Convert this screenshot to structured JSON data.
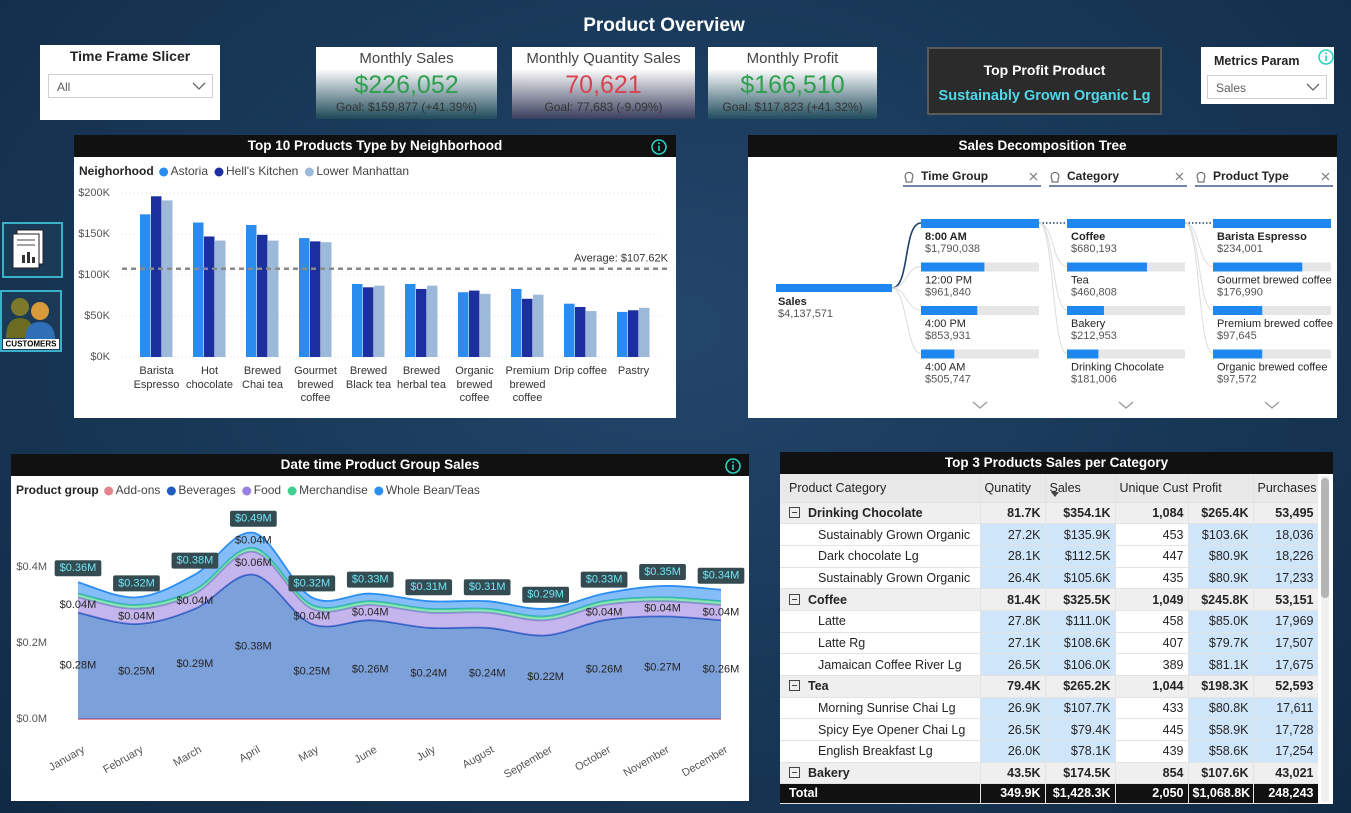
{
  "header": {
    "title": "Product Overview"
  },
  "slicer": {
    "title": "Time Frame Slicer",
    "value": "All"
  },
  "cards": [
    {
      "title": "Monthly Sales",
      "value": "$226,052",
      "goal": "Goal: $159,877 (+41.39%)",
      "color": "#2e9e4f"
    },
    {
      "title": "Monthly Quantity Sales",
      "value": "70,621",
      "goal": "Goal: 77,683 (-9.09%)",
      "color": "#d9434f"
    },
    {
      "title": "Monthly Profit",
      "value": "$166,510",
      "goal": "Goal: $117,823 (+41.32%)",
      "color": "#2e9e4f"
    }
  ],
  "top_profit": {
    "title": "Top Profit Product",
    "value": "Sustainably Grown Organic Lg"
  },
  "metrics_param": {
    "title": "Metrics Param",
    "value": "Sales"
  },
  "nav": {
    "customers": "CUSTOMERS"
  },
  "chart_data": [
    {
      "type": "bar",
      "title": "Top 10 Products Type by Neighborhood",
      "legend_title": "Neighorhood",
      "categories": [
        "Barista Espresso",
        "Hot chocolate",
        "Brewed Chai tea",
        "Gourmet brewed coffee",
        "Brewed Black tea",
        "Brewed herbal tea",
        "Organic brewed coffee",
        "Premium brewed coffee",
        "Drip coffee",
        "Pastry"
      ],
      "series": [
        {
          "name": "Astoria",
          "color": "#2b8cf0",
          "values": [
            174000,
            164000,
            161000,
            145000,
            89000,
            89000,
            79000,
            83000,
            65000,
            55000
          ]
        },
        {
          "name": "Hell's Kitchen",
          "color": "#1c2f9e",
          "values": [
            196000,
            147000,
            149000,
            141000,
            85000,
            83000,
            81000,
            71000,
            61000,
            57000
          ]
        },
        {
          "name": "Lower Manhattan",
          "color": "#9db9da",
          "values": [
            191000,
            142000,
            142000,
            140000,
            87000,
            87000,
            77000,
            76000,
            56000,
            60000
          ]
        }
      ],
      "ylim": [
        0,
        200000
      ],
      "yticks": [
        {
          "value": 0,
          "label": "$0K"
        },
        {
          "value": 50000,
          "label": "$50K"
        },
        {
          "value": 100000,
          "label": "$100K"
        },
        {
          "value": 150000,
          "label": "$150K"
        },
        {
          "value": 200000,
          "label": "$200K"
        }
      ],
      "grid": true,
      "reference_line": {
        "value": 107620,
        "label": "Average: $107.62K"
      }
    },
    {
      "type": "stacked_area",
      "title": "Date time Product Group Sales",
      "legend_title": "Product group",
      "categories": [
        "January",
        "February",
        "March",
        "April",
        "May",
        "June",
        "July",
        "August",
        "September",
        "October",
        "November",
        "December"
      ],
      "series": [
        {
          "name": "Add-ons",
          "color": "#e8828f",
          "values": [
            0,
            0,
            0,
            0,
            0,
            0,
            0,
            0,
            0,
            0,
            0,
            0
          ]
        },
        {
          "name": "Beverages",
          "color": "#1e5bbf",
          "values": [
            0.28,
            0.25,
            0.29,
            0.38,
            0.25,
            0.26,
            0.24,
            0.24,
            0.22,
            0.26,
            0.27,
            0.26
          ],
          "value_labels": [
            "$0.28M",
            "$0.25M",
            "$0.29M",
            "$0.38M",
            "$0.25M",
            "$0.26M",
            "$0.24M",
            "$0.24M",
            "$0.22M",
            "$0.26M",
            "$0.27M",
            "$0.26M"
          ]
        },
        {
          "name": "Food",
          "color": "#9b7fe0",
          "values": [
            0.04,
            0.04,
            0.04,
            0.06,
            0.04,
            0.04,
            0.04,
            0.04,
            0.04,
            0.04,
            0.04,
            0.04
          ],
          "value_labels": [
            "$0.04M",
            "$0.04M",
            "$0.04M",
            "$0.06M",
            "$0.04M",
            "$0.04M",
            null,
            null,
            null,
            "$0.04M",
            "$0.04M",
            "$0.04M"
          ]
        },
        {
          "name": "Merchandise",
          "color": "#3fcf8e",
          "values": [
            0.01,
            0.01,
            0.01,
            0.01,
            0.01,
            0.01,
            0.01,
            0.01,
            0.01,
            0.01,
            0.01,
            0.01
          ]
        },
        {
          "name": "Whole Bean/Teas",
          "color": "#2b8ef3",
          "values": [
            0.03,
            0.02,
            0.04,
            0.04,
            0.02,
            0.02,
            0.02,
            0.02,
            0.02,
            0.02,
            0.03,
            0.03
          ],
          "value_labels": [
            null,
            null,
            null,
            "$0.04M",
            null,
            null,
            null,
            null,
            null,
            null,
            null,
            null
          ]
        }
      ],
      "totals": {
        "values": [
          0.36,
          0.32,
          0.38,
          0.49,
          0.32,
          0.33,
          0.31,
          0.31,
          0.29,
          0.33,
          0.35,
          0.34
        ],
        "value_labels": [
          "$0.36M",
          "$0.32M",
          "$0.38M",
          "$0.49M",
          "$0.32M",
          "$0.33M",
          "$0.31M",
          "$0.31M",
          "$0.29M",
          "$0.33M",
          "$0.35M",
          "$0.34M"
        ]
      },
      "ylim": [
        0,
        0.6
      ],
      "yticks": [
        {
          "value": 0,
          "label": "$0.0M"
        },
        {
          "value": 0.2,
          "label": "$0.2M"
        },
        {
          "value": 0.4,
          "label": "$0.4M"
        }
      ],
      "grid": false
    }
  ],
  "decomposition_tree": {
    "title": "Sales Decomposition Tree",
    "root": {
      "label": "Sales",
      "value": 4137571,
      "value_label": "$4,137,571"
    },
    "levels": [
      {
        "name": "Time Group",
        "nodes": [
          {
            "label": "8:00 AM",
            "value": 1790038,
            "value_label": "$1,790,038"
          },
          {
            "label": "12:00 PM",
            "value": 961840,
            "value_label": "$961,840"
          },
          {
            "label": "4:00 PM",
            "value": 853931,
            "value_label": "$853,931"
          },
          {
            "label": "4:00 AM",
            "value": 505747,
            "value_label": "$505,747"
          }
        ]
      },
      {
        "name": "Category",
        "nodes": [
          {
            "label": "Coffee",
            "value": 680193,
            "value_label": "$680,193"
          },
          {
            "label": "Tea",
            "value": 460808,
            "value_label": "$460,808"
          },
          {
            "label": "Bakery",
            "value": 212953,
            "value_label": "$212,953"
          },
          {
            "label": "Drinking Chocolate",
            "value": 181006,
            "value_label": "$181,006"
          }
        ]
      },
      {
        "name": "Product Type",
        "nodes": [
          {
            "label": "Barista Espresso",
            "value": 234001,
            "value_label": "$234,001"
          },
          {
            "label": "Gourmet brewed coffee",
            "value": 176990,
            "value_label": "$176,990"
          },
          {
            "label": "Premium brewed coffee",
            "value": 97645,
            "value_label": "$97,645"
          },
          {
            "label": "Organic brewed coffee",
            "value": 97572,
            "value_label": "$97,572"
          }
        ]
      }
    ]
  },
  "table": {
    "title": "Top 3 Products Sales per Category",
    "columns": [
      "Product Category",
      "Qunatity",
      "Sales",
      "Unique Cust",
      "Profit",
      "Purchases"
    ],
    "groups": [
      {
        "cells": [
          "Drinking Chocolate",
          "81.7K",
          "$354.1K",
          "1,084",
          "$265.4K",
          "53,495"
        ],
        "children": [
          {
            "cells": [
              "Sustainably Grown Organic",
              "27.2K",
              "$135.9K",
              "453",
              "$103.6K",
              "18,036"
            ]
          },
          {
            "cells": [
              "Dark chocolate Lg",
              "28.1K",
              "$112.5K",
              "447",
              "$80.9K",
              "18,226"
            ]
          },
          {
            "cells": [
              "Sustainably Grown Organic",
              "26.4K",
              "$105.6K",
              "435",
              "$80.9K",
              "17,233"
            ]
          }
        ]
      },
      {
        "cells": [
          "Coffee",
          "81.4K",
          "$325.5K",
          "1,049",
          "$245.8K",
          "53,151"
        ],
        "children": [
          {
            "cells": [
              "Latte",
              "27.8K",
              "$111.0K",
              "458",
              "$85.0K",
              "17,969"
            ]
          },
          {
            "cells": [
              "Latte Rg",
              "27.1K",
              "$108.6K",
              "407",
              "$79.7K",
              "17,507"
            ]
          },
          {
            "cells": [
              "Jamaican Coffee River Lg",
              "26.5K",
              "$106.0K",
              "389",
              "$81.1K",
              "17,675"
            ]
          }
        ]
      },
      {
        "cells": [
          "Tea",
          "79.4K",
          "$265.2K",
          "1,044",
          "$198.3K",
          "52,593"
        ],
        "children": [
          {
            "cells": [
              "Morning Sunrise Chai Lg",
              "26.9K",
              "$107.7K",
              "433",
              "$80.8K",
              "17,611"
            ]
          },
          {
            "cells": [
              "Spicy Eye Opener Chai Lg",
              "26.5K",
              "$79.4K",
              "445",
              "$58.9K",
              "17,728"
            ]
          },
          {
            "cells": [
              "English Breakfast Lg",
              "26.0K",
              "$78.1K",
              "439",
              "$58.6K",
              "17,254"
            ]
          }
        ]
      },
      {
        "cells": [
          "Bakery",
          "43.5K",
          "$174.5K",
          "854",
          "$107.6K",
          "43,021"
        ],
        "children": []
      }
    ],
    "total": [
      "Total",
      "349.9K",
      "$1,428.3K",
      "2,050",
      "$1,068.8K",
      "248,243"
    ]
  }
}
